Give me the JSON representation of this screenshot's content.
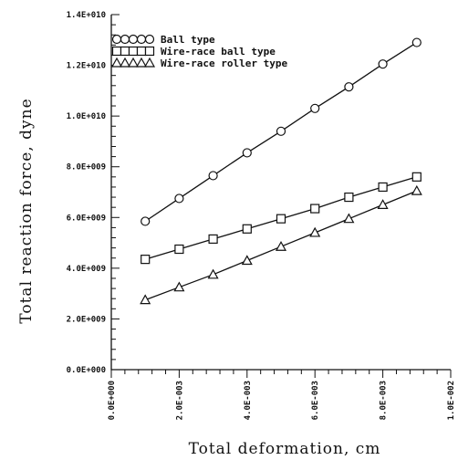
{
  "chart_data": {
    "type": "line",
    "title": "",
    "xlabel": "Total deformation, cm",
    "ylabel": "Total reaction force, dyne",
    "xlim": [
      0,
      0.01
    ],
    "ylim": [
      0,
      14000000000
    ],
    "x_ticks": [
      "0.0E+000",
      "2.0E-003",
      "4.0E-003",
      "6.0E-003",
      "8.0E-003",
      "1.0E-002"
    ],
    "y_ticks": [
      "0.0E+000",
      "2.0E+009",
      "4.0E+009",
      "6.0E+009",
      "8.0E+009",
      "1.0E+010",
      "1.2E+010",
      "1.4E+010"
    ],
    "x_tick_values": [
      0,
      0.002,
      0.004,
      0.006,
      0.008,
      0.01
    ],
    "y_tick_values": [
      0,
      2000000000,
      4000000000,
      6000000000,
      8000000000,
      10000000000,
      12000000000,
      14000000000
    ],
    "legend_position": "top-left",
    "grid": false,
    "series": [
      {
        "name": "Ball type",
        "marker": "circle",
        "x": [
          0.001,
          0.002,
          0.003,
          0.004,
          0.005,
          0.006,
          0.007,
          0.008,
          0.009
        ],
        "y": [
          5850000000,
          6750000000,
          7650000000,
          8550000000,
          9400000000,
          10300000000,
          11150000000,
          12050000000,
          12900000000
        ]
      },
      {
        "name": "Wire-race ball type",
        "marker": "square",
        "x": [
          0.001,
          0.002,
          0.003,
          0.004,
          0.005,
          0.006,
          0.007,
          0.008,
          0.009
        ],
        "y": [
          4350000000,
          4750000000,
          5150000000,
          5550000000,
          5950000000,
          6350000000,
          6800000000,
          7200000000,
          7600000000
        ]
      },
      {
        "name": "Wire-race roller type",
        "marker": "triangle",
        "x": [
          0.001,
          0.002,
          0.003,
          0.004,
          0.005,
          0.006,
          0.007,
          0.008,
          0.009
        ],
        "y": [
          2750000000,
          3250000000,
          3750000000,
          4300000000,
          4850000000,
          5400000000,
          5950000000,
          6500000000,
          7050000000
        ]
      }
    ]
  }
}
